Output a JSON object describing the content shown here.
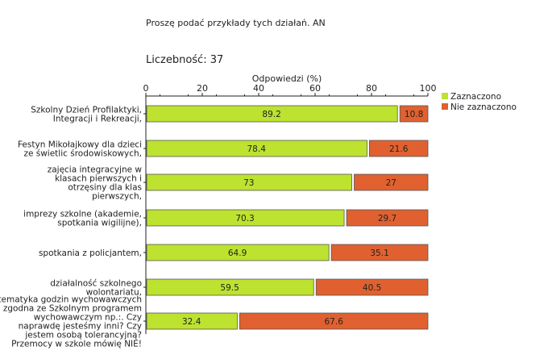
{
  "header": {
    "question": "Proszę podać przykłady tych działań. AN",
    "count_label": "Liczebność:",
    "count_value": "37"
  },
  "colors": {
    "selected": "#bde22f",
    "not_selected": "#e0612f",
    "border": "#555555"
  },
  "chart_data": {
    "type": "bar",
    "orientation": "horizontal",
    "stacked": true,
    "title": "",
    "xlabel": "Odpowiedzi (%)",
    "xlim": [
      0,
      100
    ],
    "xticks": [
      0,
      20,
      40,
      60,
      80,
      100
    ],
    "legend_position": "top-right",
    "categories": [
      [
        "Szkolny Dzień Profilaktyki,",
        "Integracji i Rekreacji,"
      ],
      [
        "Festyn Mikołajkowy dla dzieci",
        "ze świetlic środowiskowych,"
      ],
      [
        "zajęcia integracyjne w",
        "klasach pierwszych i",
        "otrzęsiny dla klas",
        "pierwszych,"
      ],
      [
        "imprezy szkolne (akademie,",
        "spotkania wigilijne),"
      ],
      [
        "spotkania z policjantem,"
      ],
      [
        "działalność szkolnego",
        "wolontariatu,"
      ],
      [
        "tematyka godzin wychowawczych",
        "zgodna ze Szkolnym programem",
        "wychowawczym np.:. Czy",
        "naprawdę jesteśmy inni?  Czy",
        "jestem osobą tolerancyjną?",
        "Przemocy w szkole mówię NIE!"
      ]
    ],
    "series": [
      {
        "name": "Zaznaczono",
        "values": [
          89.2,
          78.4,
          73,
          70.3,
          64.9,
          59.5,
          32.4
        ]
      },
      {
        "name": "Nie zaznaczono",
        "values": [
          10.8,
          21.6,
          27,
          29.7,
          35.1,
          40.5,
          67.6
        ]
      }
    ],
    "value_labels": [
      [
        "89.2",
        "78.4",
        "73",
        "70.3",
        "64.9",
        "59.5",
        "32.4"
      ],
      [
        "10.8",
        "21.6",
        "27",
        "29.7",
        "35.1",
        "40.5",
        "67.6"
      ]
    ]
  }
}
